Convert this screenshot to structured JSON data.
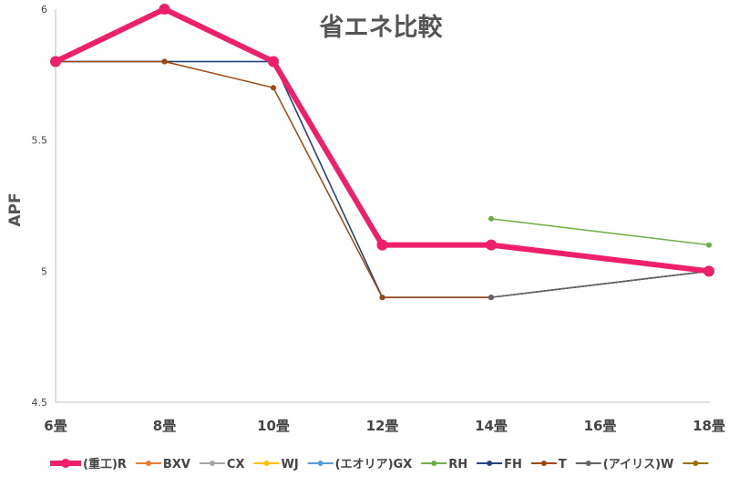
{
  "chart_data": {
    "type": "line",
    "title": "省エネ比較",
    "ylabel": "APF",
    "xlabel": "",
    "categories": [
      "6畳",
      "8畳",
      "10畳",
      "12畳",
      "14畳",
      "16畳",
      "18畳"
    ],
    "ylim": [
      4.5,
      6
    ],
    "yticks": [
      "4.5",
      "5",
      "5.5",
      "6"
    ],
    "grid": false,
    "legend_position": "bottom",
    "series": [
      {
        "name": "(重工)R",
        "color": "#ee1f6b",
        "width": 6,
        "marker": 6,
        "values": [
          5.8,
          6.0,
          5.8,
          5.1,
          5.1,
          null,
          5.0
        ]
      },
      {
        "name": "BXV",
        "color": "#ed7d31",
        "width": 1.5,
        "marker": 3,
        "values": [
          null,
          null,
          null,
          null,
          null,
          null,
          null
        ]
      },
      {
        "name": "CX",
        "color": "#a5a5a5",
        "width": 1.5,
        "marker": 3,
        "values": [
          null,
          null,
          null,
          null,
          null,
          null,
          null
        ]
      },
      {
        "name": "WJ",
        "color": "#ffc000",
        "width": 1.5,
        "marker": 3,
        "values": [
          null,
          null,
          null,
          null,
          null,
          null,
          null
        ]
      },
      {
        "name": "(エオリア)GX",
        "color": "#5b9bd5",
        "width": 1.5,
        "marker": 3,
        "values": [
          5.8,
          5.8,
          5.8,
          4.9,
          4.9,
          null,
          5.0
        ]
      },
      {
        "name": "RH",
        "color": "#70ad47",
        "width": 1.5,
        "marker": 3,
        "values": [
          null,
          null,
          null,
          null,
          5.2,
          null,
          5.1
        ]
      },
      {
        "name": "FH",
        "color": "#264478",
        "width": 1.5,
        "marker": 3,
        "values": [
          5.8,
          5.8,
          5.8,
          4.9,
          4.9,
          null,
          5.0
        ]
      },
      {
        "name": "T",
        "color": "#9e480e",
        "width": 1.5,
        "marker": 3,
        "values": [
          5.8,
          5.8,
          5.7,
          4.9,
          4.9,
          null,
          5.0
        ]
      },
      {
        "name": "(アイリス)W",
        "color": "#636363",
        "width": 1.5,
        "marker": 3,
        "values": [
          null,
          null,
          null,
          null,
          4.9,
          null,
          5.0
        ]
      },
      {
        "name": "",
        "color": "#997300",
        "width": 1.5,
        "marker": 3,
        "values": [
          null,
          null,
          null,
          null,
          null,
          null,
          null
        ]
      }
    ]
  }
}
